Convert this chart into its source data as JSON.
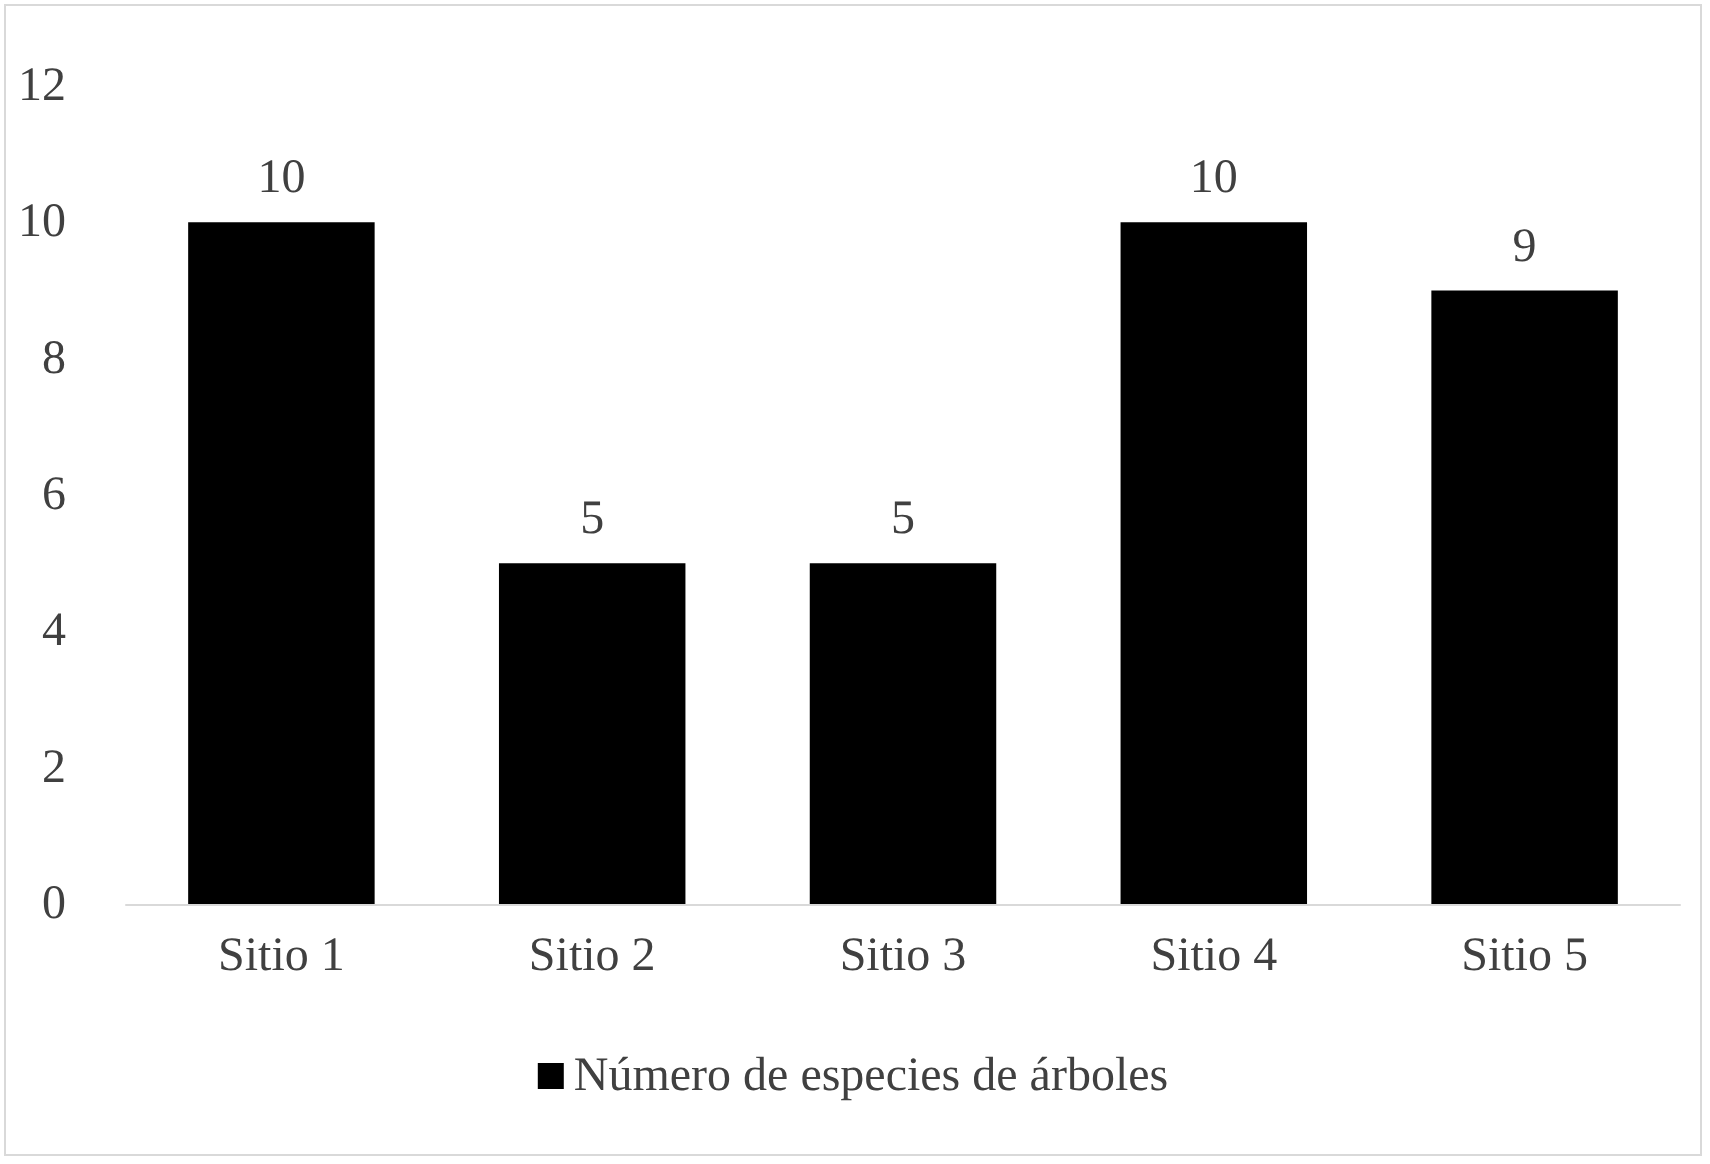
{
  "chart_data": {
    "type": "bar",
    "categories": [
      "Sitio 1",
      "Sitio 2",
      "Sitio 3",
      "Sitio 4",
      "Sitio 5"
    ],
    "series": [
      {
        "name": "Número de especies de árboles",
        "color": "#000000",
        "values": [
          10,
          5,
          5,
          10,
          9
        ]
      }
    ],
    "ylim": [
      0,
      12
    ],
    "yticks": [
      0,
      2,
      4,
      6,
      8,
      10,
      12
    ],
    "grid": false,
    "legend": "bottom",
    "data_labels": true
  }
}
